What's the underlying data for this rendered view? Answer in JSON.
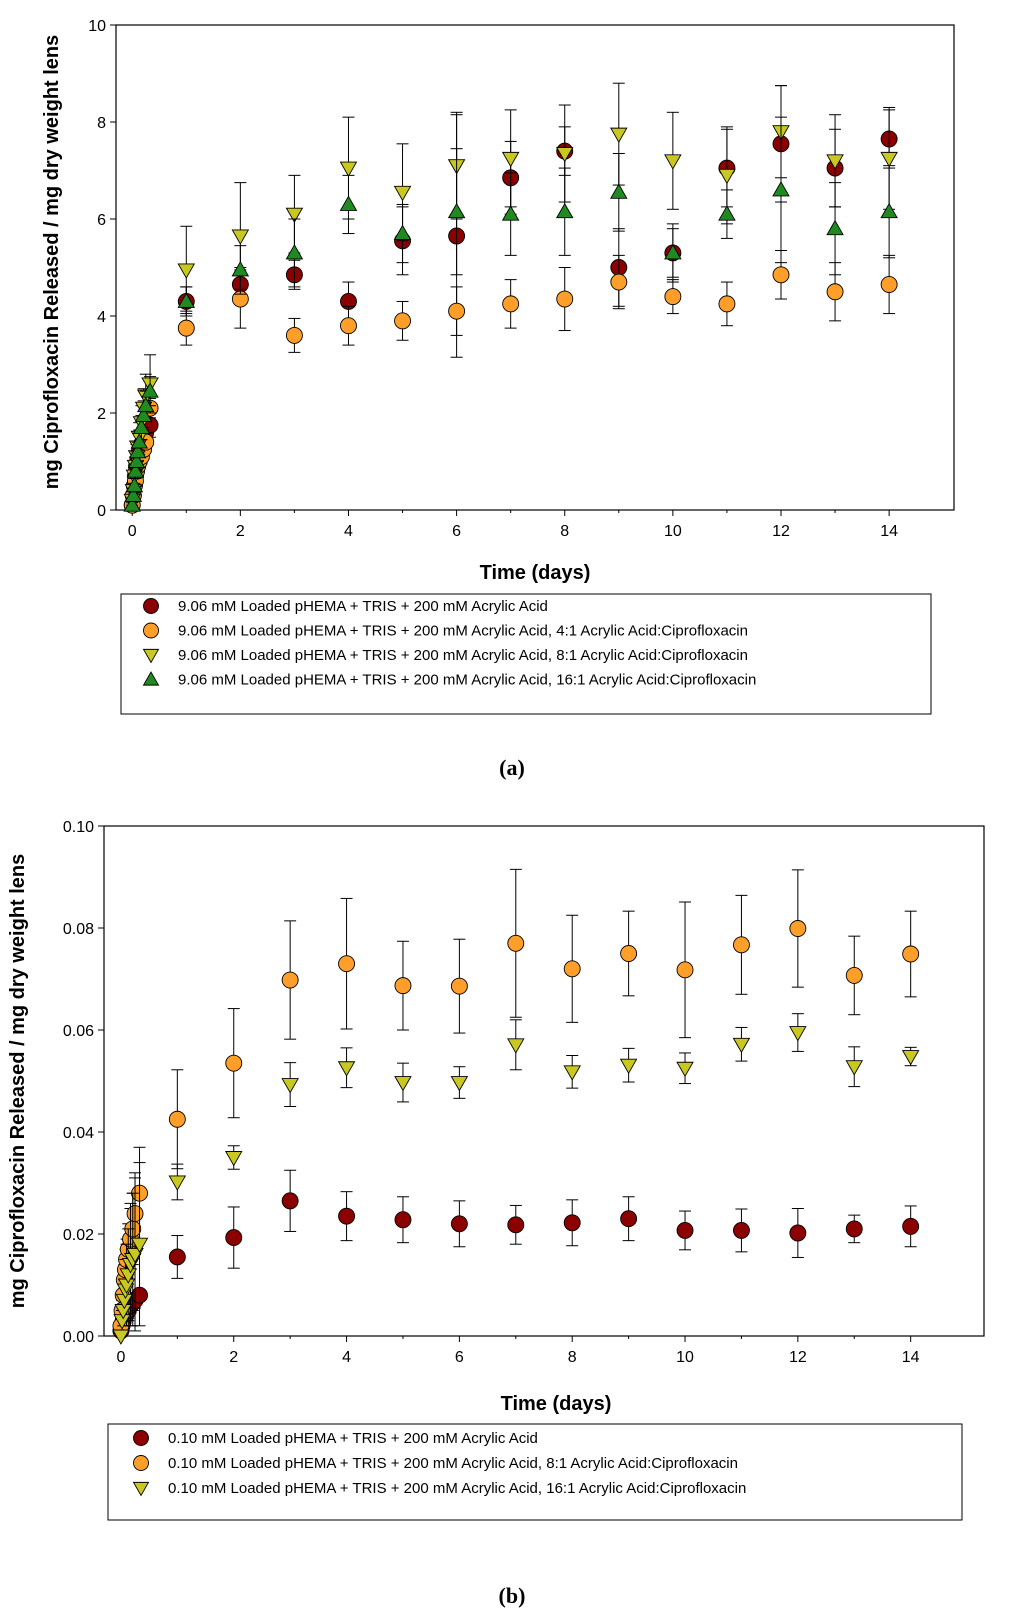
{
  "colors": {
    "dark_red": "#8b0000",
    "orange": "#ff9f2a",
    "yellow_green": "#c8c820",
    "green": "#1f8a1f",
    "axis": "#000000"
  },
  "chart_data": [
    {
      "type": "scatter",
      "panel_label": "a",
      "xlabel": "Time (days)",
      "ylabel": "mg Ciprofloxacin Released / mg dry weight lens",
      "xlim": [
        -0.3,
        15.2
      ],
      "ylim": [
        0,
        10
      ],
      "xticks": [
        "0",
        "2",
        "4",
        "6",
        "8",
        "10",
        "12",
        "14"
      ],
      "yticks": [
        "0",
        "2",
        "4",
        "6",
        "8",
        "10"
      ],
      "series": [
        {
          "name": "9.06 mM Loaded pHEMA + TRIS + 200 mM Acrylic Acid",
          "marker": "circle",
          "color": "#8b0000",
          "x": [
            0.0,
            0.02,
            0.04,
            0.06,
            0.08,
            0.1,
            0.13,
            0.17,
            0.21,
            0.25,
            0.33,
            1,
            2,
            3,
            4,
            5,
            6,
            7,
            8,
            9,
            10,
            11,
            12,
            13,
            14
          ],
          "y": [
            0.1,
            0.3,
            0.5,
            0.7,
            0.9,
            1.0,
            1.2,
            1.35,
            1.5,
            1.6,
            1.75,
            4.3,
            4.65,
            4.85,
            4.3,
            5.55,
            5.65,
            6.85,
            7.4,
            5.0,
            5.3,
            7.05,
            7.55,
            7.05,
            7.65
          ],
          "err": [
            0.05,
            0.1,
            0.1,
            0.1,
            0.15,
            0.15,
            0.15,
            0.2,
            0.2,
            0.2,
            0.25,
            0.3,
            0.35,
            0.3,
            0.4,
            0.7,
            2.5,
            0.75,
            0.5,
            0.8,
            0.6,
            0.8,
            1.2,
            0.8,
            0.6
          ]
        },
        {
          "name": "9.06 mM Loaded pHEMA + TRIS + 200 mM Acrylic Acid, 4:1 Acrylic Acid:Ciprofloxacin",
          "marker": "circle",
          "color": "#ff9f2a",
          "x": [
            0.0,
            0.02,
            0.04,
            0.06,
            0.08,
            0.1,
            0.13,
            0.17,
            0.21,
            0.25,
            0.33,
            1,
            2,
            3,
            4,
            5,
            6,
            7,
            8,
            9,
            10,
            11,
            12,
            13,
            14
          ],
          "y": [
            0.1,
            0.3,
            0.5,
            0.6,
            0.8,
            0.9,
            1.0,
            1.1,
            1.25,
            1.4,
            2.1,
            3.75,
            4.35,
            3.6,
            3.8,
            3.9,
            4.1,
            4.25,
            4.35,
            4.7,
            4.4,
            4.25,
            4.85,
            4.5,
            4.65
          ],
          "err": [
            0.05,
            0.1,
            0.1,
            0.1,
            0.1,
            0.15,
            0.15,
            0.15,
            0.2,
            0.2,
            0.2,
            0.35,
            0.6,
            0.35,
            0.4,
            0.4,
            0.5,
            0.5,
            0.65,
            0.55,
            0.35,
            0.45,
            0.5,
            0.6,
            0.6
          ]
        },
        {
          "name": "9.06 mM Loaded pHEMA + TRIS + 200 mM Acrylic Acid, 8:1 Acrylic Acid:Ciprofloxacin",
          "marker": "triangle-down",
          "color": "#c8c820",
          "x": [
            0.0,
            0.02,
            0.04,
            0.06,
            0.08,
            0.1,
            0.13,
            0.17,
            0.21,
            0.25,
            0.33,
            1,
            2,
            3,
            4,
            5,
            6,
            7,
            8,
            9,
            10,
            11,
            12,
            13,
            14
          ],
          "y": [
            0.2,
            0.4,
            0.7,
            0.9,
            1.1,
            1.3,
            1.5,
            1.8,
            2.1,
            2.35,
            2.6,
            4.95,
            5.65,
            6.1,
            7.05,
            6.55,
            7.1,
            7.25,
            7.35,
            7.75,
            7.2,
            6.9,
            7.8,
            7.2,
            7.25
          ],
          "err": [
            0.1,
            0.1,
            0.15,
            0.2,
            0.25,
            0.3,
            0.3,
            0.35,
            0.4,
            0.45,
            0.6,
            0.9,
            1.1,
            0.8,
            1.05,
            1.0,
            1.1,
            1.0,
            1.0,
            1.05,
            1.0,
            1.0,
            0.95,
            0.95,
            1.05
          ]
        },
        {
          "name": "9.06 mM Loaded pHEMA + TRIS + 200 mM Acrylic Acid, 16:1 Acrylic Acid:Ciprofloxacin",
          "marker": "triangle-up",
          "color": "#1f8a1f",
          "x": [
            0.0,
            0.02,
            0.04,
            0.06,
            0.08,
            0.1,
            0.13,
            0.17,
            0.21,
            0.25,
            0.33,
            1,
            2,
            3,
            4,
            5,
            6,
            7,
            8,
            9,
            10,
            11,
            12,
            13,
            14
          ],
          "y": [
            0.1,
            0.3,
            0.5,
            0.8,
            1.0,
            1.2,
            1.4,
            1.7,
            1.95,
            2.15,
            2.45,
            4.3,
            4.95,
            5.3,
            6.3,
            5.7,
            6.15,
            6.1,
            6.15,
            6.55,
            5.3,
            6.1,
            6.6,
            5.8,
            6.15
          ],
          "err": [
            0.05,
            0.1,
            0.15,
            0.15,
            0.2,
            0.2,
            0.25,
            0.25,
            0.3,
            0.3,
            0.3,
            0.3,
            0.5,
            0.7,
            0.6,
            0.6,
            1.3,
            0.85,
            0.9,
            0.8,
            0.5,
            0.5,
            1.5,
            0.95,
            0.95
          ]
        }
      ]
    },
    {
      "type": "scatter",
      "panel_label": "b",
      "xlabel": "Time (days)",
      "ylabel": "mg Ciprofloxacin Released / mg dry weight lens",
      "xlim": [
        -0.3,
        15.3
      ],
      "ylim": [
        0,
        0.1
      ],
      "xticks": [
        "0",
        "2",
        "4",
        "6",
        "8",
        "10",
        "12",
        "14"
      ],
      "yticks": [
        "0.00",
        "0.02",
        "0.04",
        "0.06",
        "0.08",
        "0.10"
      ],
      "series": [
        {
          "name": "0.10 mM Loaded pHEMA + TRIS + 200 mM Acrylic Acid",
          "marker": "circle",
          "color": "#8b0000",
          "x": [
            0.0,
            0.02,
            0.04,
            0.06,
            0.08,
            0.1,
            0.13,
            0.17,
            0.21,
            0.25,
            0.33,
            1,
            2,
            3,
            4,
            5,
            6,
            7,
            8,
            9,
            10,
            11,
            12,
            13,
            14
          ],
          "y": [
            0.001,
            0.002,
            0.003,
            0.004,
            0.004,
            0.005,
            0.005,
            0.006,
            0.0065,
            0.007,
            0.008,
            0.0155,
            0.0193,
            0.0265,
            0.0235,
            0.0228,
            0.022,
            0.0218,
            0.0222,
            0.023,
            0.0207,
            0.0207,
            0.0202,
            0.021,
            0.0215
          ],
          "err": [
            0.0005,
            0.001,
            0.001,
            0.001,
            0.0015,
            0.0015,
            0.0015,
            0.0015,
            0.0015,
            0.0015,
            0.001,
            0.0042,
            0.006,
            0.006,
            0.0048,
            0.0045,
            0.0045,
            0.0038,
            0.0045,
            0.0043,
            0.0038,
            0.0042,
            0.0048,
            0.0027,
            0.004
          ]
        },
        {
          "name": "0.10 mM Loaded pHEMA + TRIS + 200 mM Acrylic Acid, 8:1 Acrylic Acid:Ciprofloxacin",
          "marker": "circle",
          "color": "#ff9f2a",
          "x": [
            0.0,
            0.02,
            0.04,
            0.06,
            0.08,
            0.1,
            0.13,
            0.17,
            0.21,
            0.25,
            0.33,
            1,
            2,
            3,
            4,
            5,
            6,
            7,
            8,
            9,
            10,
            11,
            12,
            13,
            14
          ],
          "y": [
            0.002,
            0.005,
            0.008,
            0.011,
            0.013,
            0.015,
            0.017,
            0.019,
            0.021,
            0.024,
            0.028,
            0.0425,
            0.0535,
            0.0698,
            0.073,
            0.0687,
            0.0686,
            0.077,
            0.072,
            0.075,
            0.0718,
            0.0767,
            0.0799,
            0.0707,
            0.0749
          ],
          "err": [
            0.001,
            0.002,
            0.003,
            0.003,
            0.004,
            0.004,
            0.005,
            0.006,
            0.007,
            0.008,
            0.009,
            0.0097,
            0.0107,
            0.0116,
            0.0128,
            0.0087,
            0.0092,
            0.0145,
            0.0105,
            0.0083,
            0.0133,
            0.0097,
            0.0115,
            0.0077,
            0.0084
          ]
        },
        {
          "name": "0.10 mM Loaded pHEMA + TRIS + 200 mM Acrylic Acid, 16:1 Acrylic Acid:Ciprofloxacin",
          "marker": "triangle-down",
          "color": "#c8c820",
          "x": [
            0.0,
            0.02,
            0.04,
            0.06,
            0.08,
            0.1,
            0.13,
            0.17,
            0.21,
            0.25,
            0.33,
            1,
            2,
            3,
            4,
            5,
            6,
            7,
            8,
            9,
            10,
            11,
            12,
            13,
            14
          ],
          "y": [
            0.0,
            0.003,
            0.005,
            0.007,
            0.009,
            0.01,
            0.012,
            0.014,
            0.015,
            0.016,
            0.018,
            0.0302,
            0.035,
            0.0493,
            0.0526,
            0.0497,
            0.0497,
            0.0571,
            0.0518,
            0.0531,
            0.0525,
            0.0572,
            0.0595,
            0.0528,
            0.0548
          ],
          "err": [
            0.0005,
            0.002,
            0.003,
            0.004,
            0.006,
            0.008,
            0.009,
            0.012,
            0.013,
            0.015,
            0.016,
            0.0035,
            0.0023,
            0.0043,
            0.0039,
            0.0038,
            0.0031,
            0.0049,
            0.0032,
            0.0033,
            0.003,
            0.0033,
            0.0037,
            0.0039,
            0.0018
          ]
        }
      ]
    }
  ]
}
